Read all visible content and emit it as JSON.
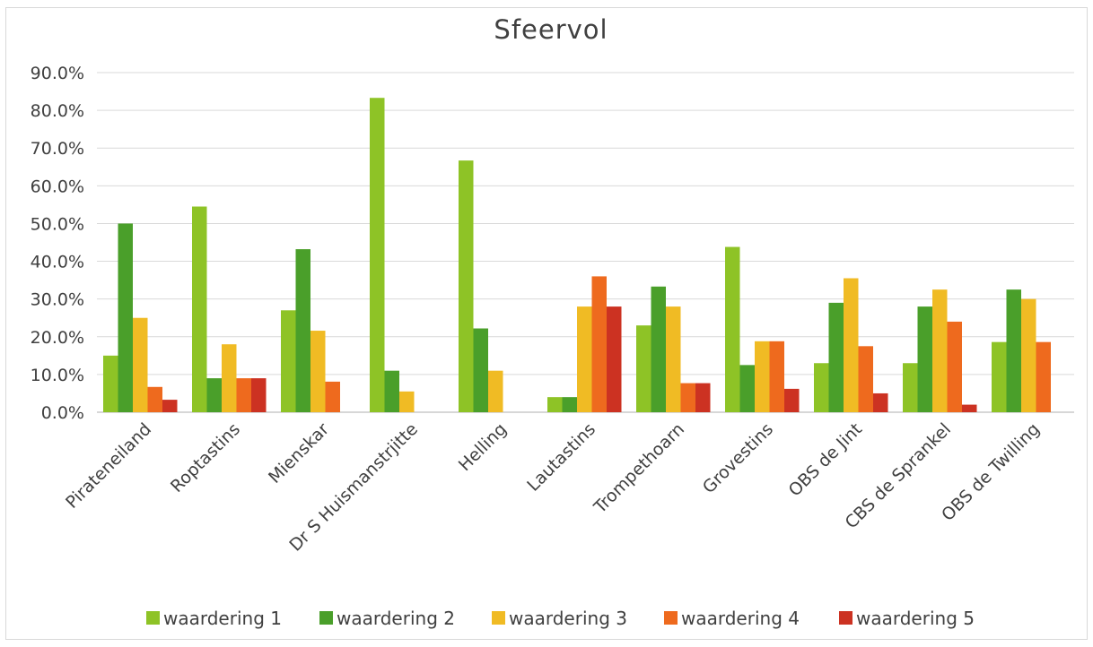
{
  "chart_data": {
    "type": "bar",
    "title": "Sfeervol",
    "xlabel": "",
    "ylabel": "",
    "ylim": [
      0,
      0.9
    ],
    "yticks": [
      "0.0%",
      "10.0%",
      "20.0%",
      "30.0%",
      "40.0%",
      "50.0%",
      "60.0%",
      "70.0%",
      "80.0%",
      "90.0%"
    ],
    "grid": true,
    "legend_position": "bottom",
    "categories": [
      "Pirateneiland",
      "Roptastins",
      "Mienskar",
      "Dr S Huismanstrjitte",
      "Helling",
      "Lautastins",
      "Trompethoarn",
      "Grovestins",
      "OBS de Jint",
      "CBS de Sprankel",
      "OBS de Twilling"
    ],
    "series": [
      {
        "name": "waardering 1",
        "color": "#8ec326",
        "values": [
          0.15,
          0.545,
          0.27,
          0.833,
          0.667,
          0.04,
          0.23,
          0.438,
          0.13,
          0.13,
          0.186
        ]
      },
      {
        "name": "waardering 2",
        "color": "#4a9f2a",
        "values": [
          0.5,
          0.09,
          0.432,
          0.11,
          0.222,
          0.04,
          0.333,
          0.125,
          0.29,
          0.28,
          0.325
        ]
      },
      {
        "name": "waardering 3",
        "color": "#f0bb24",
        "values": [
          0.25,
          0.18,
          0.216,
          0.055,
          0.11,
          0.28,
          0.28,
          0.188,
          0.355,
          0.325,
          0.3
        ]
      },
      {
        "name": "waardering 4",
        "color": "#ee6a1e",
        "values": [
          0.067,
          0.09,
          0.081,
          0,
          0,
          0.36,
          0.077,
          0.188,
          0.175,
          0.24,
          0.186
        ]
      },
      {
        "name": "waardering 5",
        "color": "#cc3222",
        "values": [
          0.033,
          0.09,
          0,
          0,
          0,
          0.28,
          0.077,
          0.062,
          0.05,
          0.02,
          0
        ]
      }
    ]
  }
}
